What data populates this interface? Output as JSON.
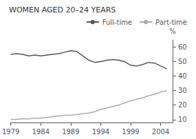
{
  "chart_data": {
    "type": "line",
    "title": "WOMEN AGED 20–24 YEARS",
    "ylabel": "%",
    "x": [
      1979,
      1980,
      1981,
      1982,
      1983,
      1984,
      1985,
      1986,
      1987,
      1988,
      1989,
      1990,
      1991,
      1992,
      1993,
      1994,
      1995,
      1996,
      1997,
      1998,
      1999,
      2000,
      2001,
      2002,
      2003,
      2004,
      2005
    ],
    "series": [
      {
        "name": "Full-time",
        "color": "#555555",
        "values": [
          55,
          55.5,
          55,
          54,
          54.5,
          54,
          54.5,
          55,
          55.5,
          56.5,
          57.5,
          57,
          54,
          51,
          49.5,
          50,
          51,
          51.5,
          51,
          50,
          47.5,
          47,
          48,
          49.5,
          49,
          47,
          45
        ]
      },
      {
        "name": "Part-time",
        "color": "#aaaaaa",
        "values": [
          10,
          10.2,
          10.5,
          10.5,
          11,
          11,
          11.5,
          12,
          12.5,
          13,
          13,
          13.5,
          14,
          14.5,
          15.5,
          17,
          18,
          19,
          20,
          21.5,
          23,
          24,
          25,
          26.5,
          27.5,
          29,
          30
        ]
      }
    ],
    "xlim": [
      1979,
      2006
    ],
    "xticks": [
      1979,
      1984,
      1989,
      1994,
      1999,
      2004
    ],
    "ylim": [
      8,
      65
    ],
    "yticks": [
      10,
      20,
      30,
      40,
      50,
      60
    ],
    "grid": false,
    "legend": "upper right"
  }
}
